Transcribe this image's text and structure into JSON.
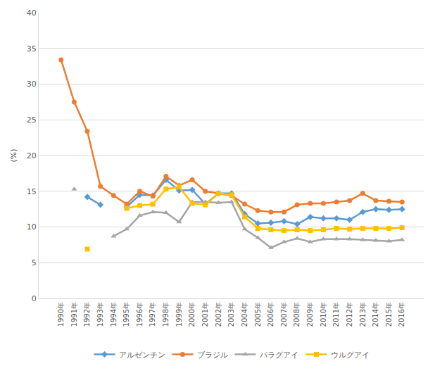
{
  "chart_data": {
    "type": "line",
    "y_label": "(%)",
    "categories": [
      "1990年",
      "1991年",
      "1992年",
      "1993年",
      "1994年",
      "1995年",
      "1996年",
      "1997年",
      "1998年",
      "1999年",
      "2000年",
      "2001年",
      "2002年",
      "2003年",
      "2004年",
      "2005年",
      "2006年",
      "2007年",
      "2008年",
      "2009年",
      "2010年",
      "2011年",
      "2012年",
      "2013年",
      "2014年",
      "2015年",
      "2016年"
    ],
    "series": [
      {
        "name": "アルゼンチン",
        "color": "#5b9bd5",
        "marker": "diamond",
        "values": [
          null,
          null,
          14.2,
          13.1,
          null,
          12.8,
          14.5,
          14.4,
          16.6,
          15.1,
          15.2,
          13.2,
          14.7,
          14.7,
          11.8,
          10.5,
          10.6,
          10.8,
          10.4,
          11.4,
          11.2,
          11.2,
          11.0,
          12.1,
          12.5,
          12.4,
          12.5
        ]
      },
      {
        "name": "ブラジル",
        "color": "#ed7d31",
        "marker": "circle",
        "values": [
          33.4,
          27.5,
          23.4,
          15.7,
          14.4,
          13.2,
          15.0,
          14.3,
          17.1,
          15.8,
          16.6,
          15.0,
          14.7,
          14.4,
          13.2,
          12.3,
          12.1,
          12.1,
          13.1,
          13.3,
          13.3,
          13.5,
          13.7,
          14.7,
          13.7,
          13.6,
          13.5
        ]
      },
      {
        "name": "パラグアイ",
        "color": "#a5a5a5",
        "marker": "triangle-up",
        "values": [
          null,
          15.3,
          null,
          null,
          8.7,
          9.7,
          11.6,
          12.1,
          12.0,
          10.7,
          13.5,
          13.5,
          13.4,
          13.5,
          9.7,
          8.5,
          7.1,
          7.9,
          8.4,
          7.9,
          8.3,
          8.3,
          8.3,
          8.2,
          8.1,
          8.0,
          8.2
        ]
      },
      {
        "name": "ウルグアイ",
        "color": "#ffc000",
        "marker": "square",
        "values": [
          null,
          null,
          6.9,
          null,
          null,
          12.6,
          13.0,
          13.2,
          15.3,
          15.6,
          13.3,
          13.1,
          14.7,
          14.5,
          11.4,
          9.8,
          9.6,
          9.5,
          9.6,
          9.5,
          9.6,
          9.8,
          9.7,
          9.8,
          9.8,
          9.8,
          9.9
        ]
      }
    ],
    "ylim": [
      0,
      40
    ],
    "yticks": [
      0,
      5,
      10,
      15,
      20,
      25,
      30,
      35,
      40
    ],
    "grid": true,
    "legend": "bottom"
  }
}
